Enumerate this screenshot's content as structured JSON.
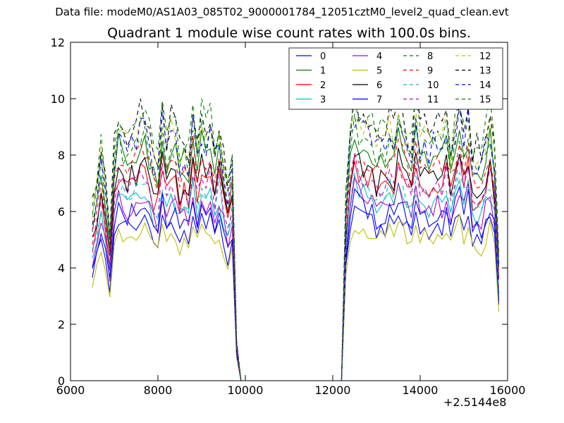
{
  "suptitle": "Data file: modeM0/AS1A03_085T02_9000001784_12051cztM0_level2_quad_clean.evt",
  "chart_data": {
    "type": "line",
    "title": "Quadrant 1 module wise count rates with 100.0s bins.",
    "x_offset_label": "+2.5144e8",
    "xlabel": "",
    "ylabel": "",
    "xlim": [
      6000,
      16000
    ],
    "ylim": [
      0,
      12
    ],
    "x_ticks": [
      6000,
      8000,
      10000,
      12000,
      14000,
      16000
    ],
    "x_tick_labels": [
      "6000",
      "8000",
      "10000",
      "12000",
      "14000",
      "16000"
    ],
    "y_ticks": [
      0,
      2,
      4,
      6,
      8,
      10,
      12
    ],
    "y_tick_labels": [
      "0",
      "2",
      "4",
      "6",
      "8",
      "10",
      "12"
    ],
    "legend_position": "upper-right",
    "legend_columns": 4,
    "bin_width": 100,
    "segments": [
      {
        "x_start": 6500,
        "x_end": 9700,
        "bins": 33
      },
      {
        "x_start": 12300,
        "x_end": 15800,
        "bins": 36
      }
    ],
    "gap_value": 0,
    "series": [
      {
        "name": "0",
        "color": "#0000ff",
        "style": "solid",
        "level": 5.5
      },
      {
        "name": "1",
        "color": "#008000",
        "style": "solid",
        "level": 8.0
      },
      {
        "name": "2",
        "color": "#ff0000",
        "style": "solid",
        "level": 7.0
      },
      {
        "name": "3",
        "color": "#00bfbf",
        "style": "solid",
        "level": 6.3
      },
      {
        "name": "4",
        "color": "#bf00bf",
        "style": "solid",
        "level": 6.2
      },
      {
        "name": "5",
        "color": "#bfbf00",
        "style": "solid",
        "level": 5.1
      },
      {
        "name": "6",
        "color": "#000000",
        "style": "solid",
        "level": 7.2
      },
      {
        "name": "7",
        "color": "#0000ff",
        "style": "solid",
        "level": 5.9
      },
      {
        "name": "8",
        "color": "#008000",
        "style": "dashed",
        "level": 8.2
      },
      {
        "name": "9",
        "color": "#ff0000",
        "style": "dashed",
        "level": 7.6
      },
      {
        "name": "10",
        "color": "#00bfbf",
        "style": "dashed",
        "level": 6.6
      },
      {
        "name": "11",
        "color": "#bf00bf",
        "style": "dashed",
        "level": 6.9
      },
      {
        "name": "12",
        "color": "#bfbf00",
        "style": "dashed",
        "level": 8.6
      },
      {
        "name": "13",
        "color": "#000000",
        "style": "dashed",
        "level": 9.0
      },
      {
        "name": "14",
        "color": "#0000ff",
        "style": "dashed",
        "level": 8.4
      },
      {
        "name": "15",
        "color": "#008000",
        "style": "dashed",
        "level": 8.9
      }
    ]
  }
}
